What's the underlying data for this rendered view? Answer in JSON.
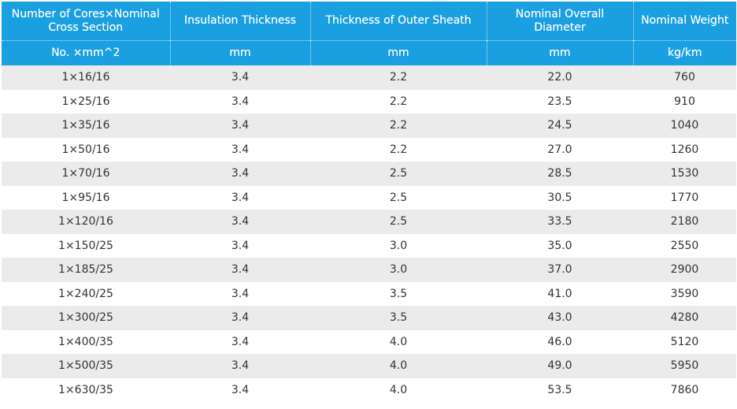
{
  "table": {
    "headers": [
      "Number of Cores×Nominal Cross Section",
      "Insulation Thickness",
      "Thickness of Outer Sheath",
      "Nominal Overall Diameter",
      "Nominal Weight"
    ],
    "units": [
      "No. ×mm^2",
      "mm",
      "mm",
      "mm",
      "kg/km"
    ],
    "rows": [
      [
        "1×16/16",
        "3.4",
        "2.2",
        "22.0",
        "760"
      ],
      [
        "1×25/16",
        "3.4",
        "2.2",
        "23.5",
        "910"
      ],
      [
        "1×35/16",
        "3.4",
        "2.2",
        "24.5",
        "1040"
      ],
      [
        "1×50/16",
        "3.4",
        "2.2",
        "27.0",
        "1260"
      ],
      [
        "1×70/16",
        "3.4",
        "2.5",
        "28.5",
        "1530"
      ],
      [
        "1×95/16",
        "3.4",
        "2.5",
        "30.5",
        "1770"
      ],
      [
        "1×120/16",
        "3.4",
        "2.5",
        "33.5",
        "2180"
      ],
      [
        "1×150/25",
        "3.4",
        "3.0",
        "35.0",
        "2550"
      ],
      [
        "1×185/25",
        "3.4",
        "3.0",
        "37.0",
        "2900"
      ],
      [
        "1×240/25",
        "3.4",
        "3.5",
        "41.0",
        "3590"
      ],
      [
        "1×300/25",
        "3.4",
        "3.5",
        "43.0",
        "4280"
      ],
      [
        "1×400/35",
        "3.4",
        "4.0",
        "46.0",
        "5120"
      ],
      [
        "1×500/35",
        "3.4",
        "4.0",
        "49.0",
        "5950"
      ],
      [
        "1×630/35",
        "3.4",
        "4.0",
        "53.5",
        "7860"
      ]
    ]
  },
  "colors": {
    "header_background": "#1a9fe0",
    "header_text": "#ffffff",
    "row_stripe": "#ebebeb",
    "row_plain": "#ffffff",
    "body_text": "#333333"
  }
}
